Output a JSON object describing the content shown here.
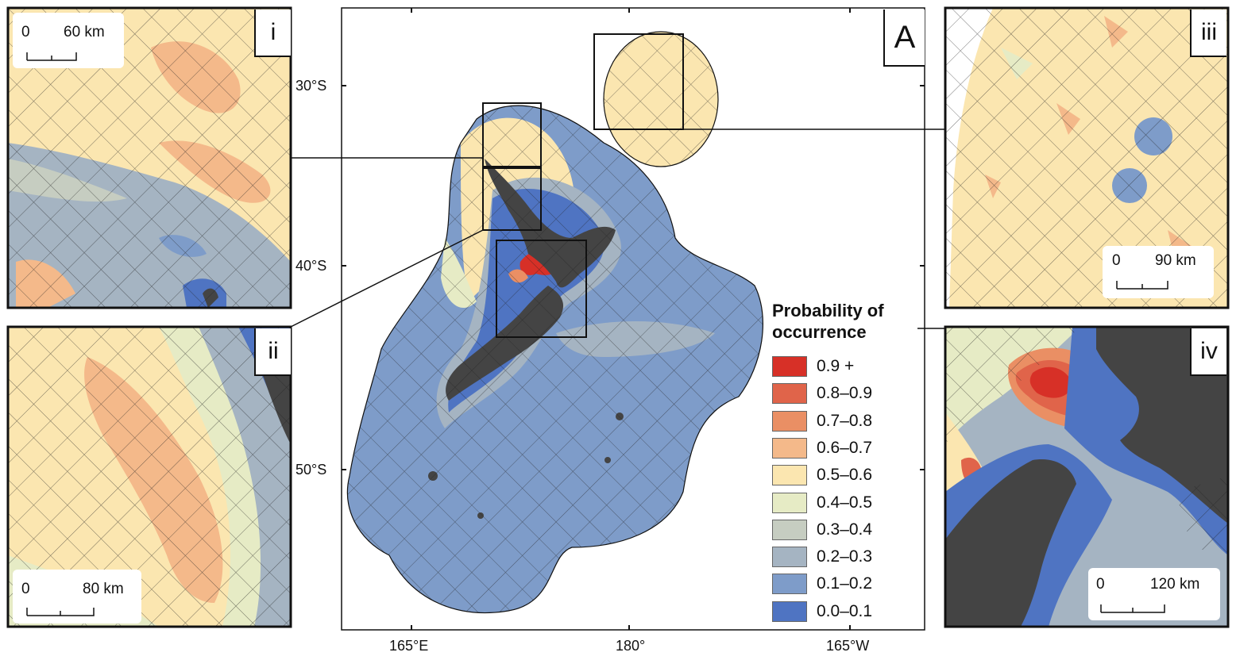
{
  "main_panel": {
    "label": "A"
  },
  "latitude_labels": [
    "30°S",
    "40°S",
    "50°S"
  ],
  "longitude_labels": [
    "165°E",
    "180°",
    "165°W"
  ],
  "legend": {
    "title_line1": "Probability of",
    "title_line2": "occurrence",
    "classes": [
      {
        "label": "0.9 +",
        "color": "#d73027"
      },
      {
        "label": "0.8–0.9",
        "color": "#e0644a"
      },
      {
        "label": "0.7–0.8",
        "color": "#ea8f64"
      },
      {
        "label": "0.6–0.7",
        "color": "#f4b98a"
      },
      {
        "label": "0.5–0.6",
        "color": "#fbe6b0"
      },
      {
        "label": "0.4–0.5",
        "color": "#e6ebc5"
      },
      {
        "label": "0.3–0.4",
        "color": "#c6cdc1"
      },
      {
        "label": "0.2–0.3",
        "color": "#a5b4c2"
      },
      {
        "label": "0.1–0.2",
        "color": "#7e9cc9"
      },
      {
        "label": "0.0–0.1",
        "color": "#4f74c2"
      }
    ]
  },
  "insets": [
    {
      "label": "i",
      "scale_zero": "0",
      "scale_max": "60 km"
    },
    {
      "label": "ii",
      "scale_zero": "0",
      "scale_max": "80 km"
    },
    {
      "label": "iii",
      "scale_zero": "0",
      "scale_max": "90 km"
    },
    {
      "label": "iv",
      "scale_zero": "0",
      "scale_max": "120 km"
    }
  ],
  "colors": {
    "land": "#444444",
    "frame": "#111111",
    "hatch": "#222222"
  }
}
